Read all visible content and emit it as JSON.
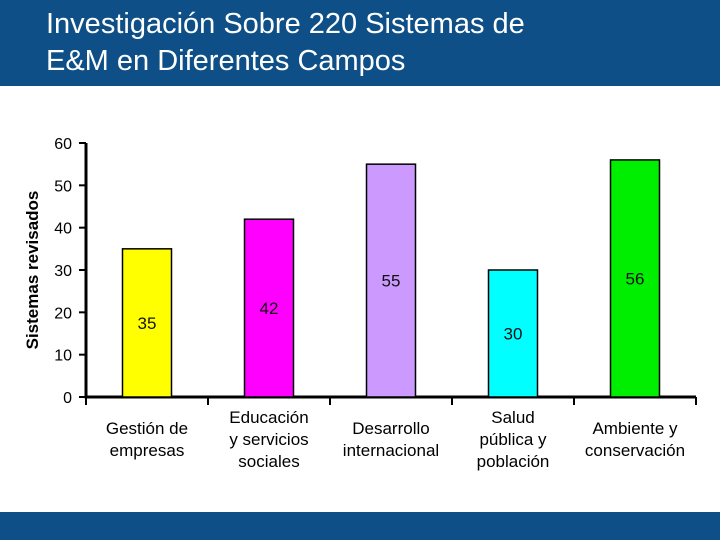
{
  "slide": {
    "title_lines": [
      "Investigación Sobre 220 Sistemas de",
      "E&M en Diferentes Campos"
    ],
    "colors": {
      "header_bg": "#0d4f86",
      "title_text": "#ffffff",
      "footer_bg": "#0d4f86",
      "axis": "#000000"
    }
  },
  "chart_data": {
    "type": "bar",
    "title": "Investigación Sobre 220 Sistemas de E&M en Diferentes Campos",
    "xlabel": "",
    "ylabel": "Sistemas revisados",
    "ylim": [
      0,
      60
    ],
    "yticks": [
      0,
      10,
      20,
      30,
      40,
      50,
      60
    ],
    "grid": false,
    "categories": [
      [
        "Gestión de",
        "empresas"
      ],
      [
        "Educación",
        "y servicios",
        "sociales"
      ],
      [
        "Desarrollo",
        "internacional"
      ],
      [
        "Salud",
        "pública y",
        "población"
      ],
      [
        "Ambiente y",
        "conservación"
      ]
    ],
    "values": [
      35,
      42,
      55,
      30,
      56
    ],
    "bar_colors": [
      "#ffff00",
      "#ff00ff",
      "#cc99ff",
      "#00ffff",
      "#00ee00"
    ]
  }
}
